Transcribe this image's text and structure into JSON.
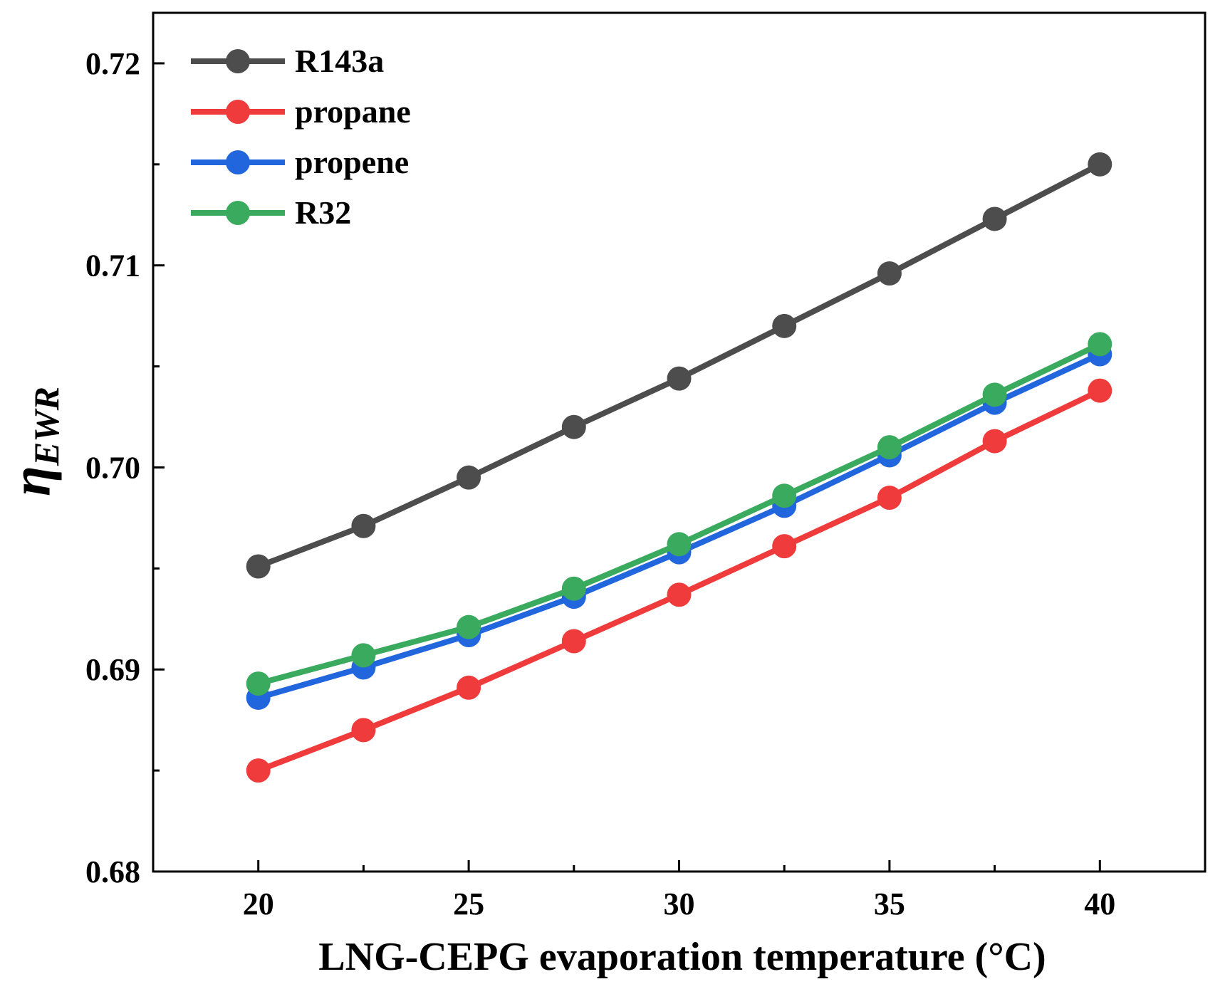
{
  "chart_data": {
    "type": "line",
    "xlabel": "LNG-CEPG evaporation temperature (°C)",
    "ylabel_main": "η",
    "ylabel_sub": "EWR",
    "xlim": [
      17.5,
      42.5
    ],
    "ylim": [
      0.68,
      0.7225
    ],
    "x_ticks": [
      20,
      25,
      30,
      35,
      40
    ],
    "x_minor_ticks": [
      22.5,
      27.5,
      32.5,
      37.5
    ],
    "y_ticks": [
      0.68,
      0.69,
      0.7,
      0.71,
      0.72
    ],
    "y_tick_labels": [
      "0.68",
      "0.69",
      "0.70",
      "0.71",
      "0.72"
    ],
    "y_minor_ticks": [
      0.685,
      0.695,
      0.705,
      0.715
    ],
    "grid": false,
    "legend_position": "top-left",
    "x": [
      20,
      22.5,
      25,
      27.5,
      30,
      32.5,
      35,
      37.5,
      40
    ],
    "series": [
      {
        "name": "R143a",
        "color": "#4d4d4d",
        "values": [
          0.6951,
          0.6971,
          0.6995,
          0.702,
          0.7044,
          0.707,
          0.7096,
          0.7123,
          0.715
        ]
      },
      {
        "name": "propane",
        "color": "#ef3b3b",
        "values": [
          0.685,
          0.687,
          0.6891,
          0.6914,
          0.6937,
          0.6961,
          0.6985,
          0.7013,
          0.7038
        ]
      },
      {
        "name": "propene",
        "color": "#2266dd",
        "values": [
          0.6886,
          0.6901,
          0.6917,
          0.6936,
          0.6958,
          0.6981,
          0.7006,
          0.7032,
          0.7056
        ]
      },
      {
        "name": "R32",
        "color": "#3aaa5e",
        "values": [
          0.6893,
          0.6907,
          0.6921,
          0.694,
          0.6962,
          0.6986,
          0.701,
          0.7036,
          0.7061
        ]
      }
    ]
  }
}
